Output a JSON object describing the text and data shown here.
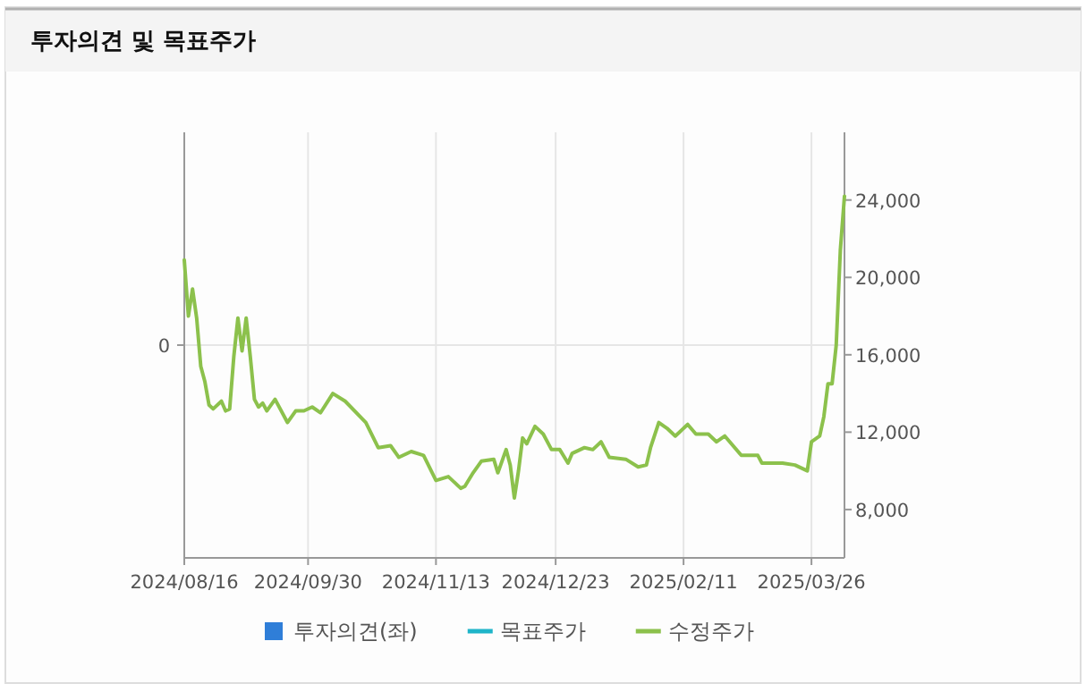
{
  "chart_data": {
    "type": "line",
    "title": "투자의견 및 목표주가",
    "categories": [
      "2024/08/16",
      null,
      null,
      null,
      null,
      null,
      null,
      null,
      null,
      null,
      null,
      null,
      null,
      null,
      null,
      null,
      null,
      null,
      null,
      null,
      null,
      null,
      null,
      null,
      null,
      null,
      null,
      null,
      null,
      null,
      "2024/09/30",
      null,
      null,
      null,
      null,
      null,
      null,
      null,
      null,
      null,
      null,
      null,
      null,
      null,
      null,
      null,
      null,
      null,
      null,
      null,
      null,
      null,
      null,
      null,
      null,
      null,
      null,
      null,
      null,
      null,
      null,
      "2024/11/13",
      null,
      null,
      null,
      null,
      null,
      null,
      null,
      null,
      null,
      null,
      null,
      null,
      null,
      null,
      null,
      null,
      null,
      null,
      null,
      null,
      null,
      null,
      null,
      null,
      null,
      null,
      null,
      null,
      "2024/12/23",
      null,
      null,
      null,
      null,
      null,
      null,
      null,
      null,
      null,
      null,
      null,
      null,
      null,
      null,
      null,
      null,
      null,
      null,
      null,
      null,
      null,
      null,
      null,
      null,
      null,
      null,
      null,
      null,
      null,
      null,
      "2025/02/11",
      null,
      null,
      null,
      null,
      null,
      null,
      null,
      null,
      null,
      null,
      null,
      null,
      null,
      null,
      null,
      null,
      null,
      null,
      null,
      null,
      null,
      null,
      null,
      null,
      null,
      null,
      null,
      null,
      null,
      null,
      "2025/03/26",
      null,
      null,
      null,
      null,
      null,
      null,
      null,
      null
    ],
    "series": [
      {
        "name": "투자의견(좌)",
        "type": "bar",
        "color": "#2f7ed8",
        "values": [
          null,
          null,
          null,
          null,
          null,
          null,
          null,
          null,
          null,
          null,
          null,
          null,
          null,
          null,
          null,
          null,
          null,
          null,
          null,
          null,
          null,
          null,
          null,
          null,
          null,
          null,
          null,
          null,
          null,
          null,
          null,
          null,
          null,
          null,
          null,
          null,
          null,
          null,
          null,
          null,
          null,
          null,
          null,
          null,
          null,
          null,
          null,
          null,
          null,
          null,
          null,
          null,
          null,
          null,
          null,
          null,
          null,
          null,
          null,
          null,
          null,
          null,
          null,
          null,
          null,
          null,
          null,
          null,
          null,
          null,
          null,
          null,
          null,
          null,
          null,
          null,
          null,
          null,
          null,
          null,
          null,
          null,
          null,
          null,
          null,
          null,
          null,
          null,
          null,
          null,
          null,
          null,
          null,
          null,
          null,
          null,
          null,
          null,
          null,
          null,
          null,
          null,
          null,
          null,
          null,
          null,
          null,
          null,
          null,
          null,
          null,
          null,
          null,
          null,
          null,
          null,
          null,
          null,
          null,
          null,
          null,
          null,
          null,
          null,
          null,
          null,
          null,
          null,
          null,
          null,
          null,
          null,
          null,
          null,
          null,
          null,
          null,
          null,
          null,
          null,
          null,
          null,
          null,
          null,
          null,
          null,
          null,
          null,
          null,
          null,
          null,
          null,
          null,
          null,
          null,
          null,
          null,
          null,
          null,
          null,
          null
        ]
      },
      {
        "name": "목표주가",
        "axis": "y2",
        "color": "#1fb5c9",
        "values": [
          null,
          null,
          null,
          null,
          null,
          null,
          null,
          null,
          null,
          null,
          null,
          null,
          null,
          null,
          null,
          null,
          null,
          null,
          null,
          null,
          null,
          null,
          null,
          null,
          null,
          null,
          null,
          null,
          null,
          null,
          null,
          null,
          null,
          null,
          null,
          null,
          null,
          null,
          null,
          null,
          null,
          null,
          null,
          null,
          null,
          null,
          null,
          null,
          null,
          null,
          null,
          null,
          null,
          null,
          null,
          null,
          null,
          null,
          null,
          null,
          null,
          null,
          null,
          null,
          null,
          null,
          null,
          null,
          null,
          null,
          null,
          null,
          null,
          null,
          null,
          null,
          null,
          null,
          null,
          null,
          null,
          null,
          null,
          null,
          null,
          null,
          null,
          null,
          null,
          null,
          null,
          null,
          null,
          null,
          null,
          null,
          null,
          null,
          null,
          null,
          null,
          null,
          null,
          null,
          null,
          null,
          null,
          null,
          null,
          null,
          null,
          null,
          null,
          null,
          null,
          null,
          null,
          null,
          null,
          null,
          null,
          null,
          null,
          null,
          null,
          null,
          null,
          null,
          null,
          null,
          null,
          null,
          null,
          null,
          null,
          null,
          null,
          null,
          null,
          null,
          null,
          null,
          null,
          null,
          null,
          null,
          null,
          null,
          null,
          null,
          null,
          null,
          null,
          null,
          null,
          null,
          null,
          null,
          null,
          null,
          null
        ]
      },
      {
        "name": "수정주가",
        "axis": "y2",
        "color": "#8cc14c",
        "values": [
          20900,
          18000,
          19400,
          17900,
          15400,
          14600,
          13400,
          13200,
          null,
          13600,
          13100,
          13200,
          15900,
          17900,
          16200,
          17900,
          15900,
          13700,
          13300,
          13500,
          13100,
          null,
          13700,
          null,
          null,
          12500,
          null,
          13100,
          null,
          13100,
          null,
          13300,
          null,
          13000,
          null,
          null,
          14000,
          null,
          null,
          13600,
          null,
          null,
          null,
          null,
          12500,
          null,
          null,
          11200,
          null,
          null,
          11300,
          null,
          10700,
          null,
          null,
          11000,
          null,
          null,
          10800,
          null,
          null,
          9500,
          null,
          null,
          9700,
          null,
          null,
          9100,
          9200,
          null,
          9900,
          null,
          10500,
          null,
          null,
          10600,
          9900,
          null,
          11100,
          10300,
          8600,
          10000,
          11700,
          11400,
          null,
          12300,
          null,
          11900,
          null,
          11100,
          null,
          11100,
          null,
          10400,
          10900,
          null,
          null,
          11200,
          null,
          11100,
          null,
          11500,
          null,
          10700,
          null,
          null,
          null,
          10600,
          null,
          null,
          10200,
          null,
          10300,
          11200,
          null,
          12500,
          null,
          12200,
          null,
          11800,
          null,
          null,
          12400,
          null,
          11900,
          null,
          null,
          11900,
          null,
          11500,
          null,
          11800,
          null,
          null,
          null,
          10800,
          null,
          null,
          null,
          10800,
          10400,
          null,
          null,
          null,
          null,
          10400,
          null,
          null,
          10300,
          null,
          null,
          10000,
          11500,
          null,
          11800,
          12800,
          14500,
          14500,
          16500,
          21400,
          24200
        ]
      }
    ],
    "y2lim": [
      5500,
      27500
    ],
    "y2ticks": [
      {
        "value": 8000,
        "label": "8,000"
      },
      {
        "value": 12000,
        "label": "12,000"
      },
      {
        "value": 16000,
        "label": "16,000"
      },
      {
        "value": 20000,
        "label": "20,000"
      },
      {
        "value": 24000,
        "label": "24,000"
      }
    ],
    "annotations": [
      "0"
    ],
    "grid": "x",
    "legend": "bottom",
    "marker": "none",
    "line_style": "solid"
  }
}
